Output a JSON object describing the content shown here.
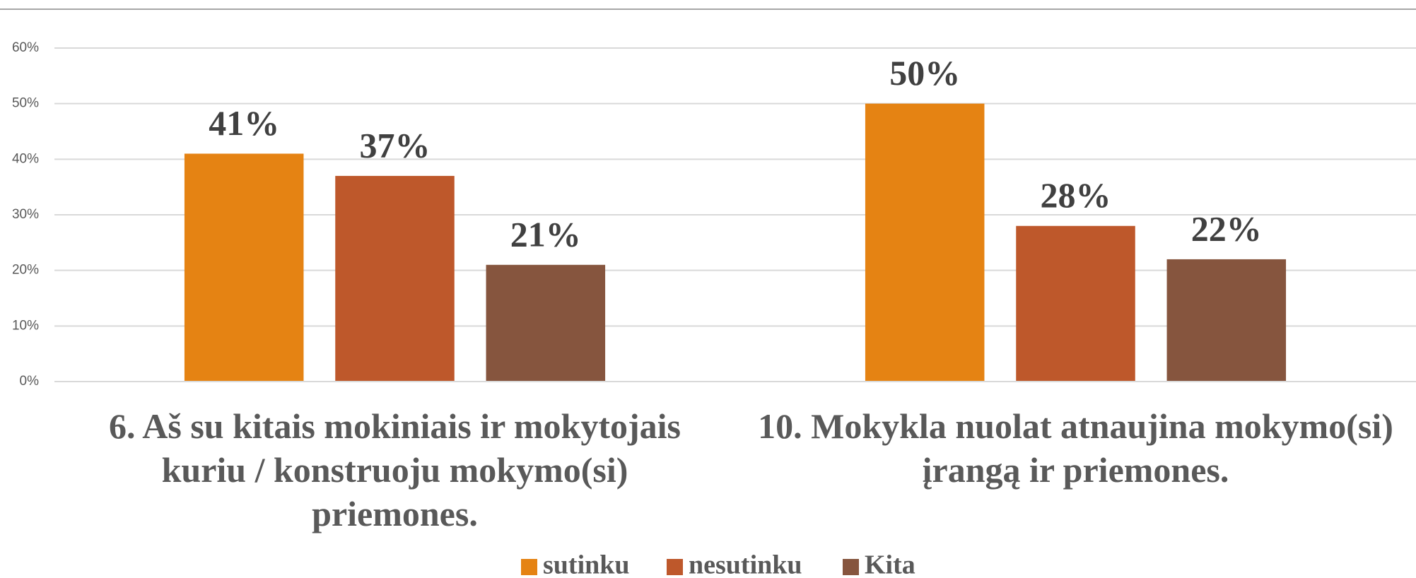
{
  "chart_data": {
    "type": "bar",
    "categories": [
      "6. Aš su kitais mokiniais ir mokytojais kuriu / konstruoju mokymo(si) priemones.",
      "10. Mokykla nuolat atnaujina mokymo(si) įrangą ir priemones."
    ],
    "series": [
      {
        "name": "sutinku",
        "color": "#e58313",
        "values": [
          41,
          50
        ],
        "value_labels": [
          "41%",
          "50%"
        ]
      },
      {
        "name": "nesutinku",
        "color": "#be582b",
        "values": [
          37,
          28
        ],
        "value_labels": [
          "37%",
          "28%"
        ]
      },
      {
        "name": "Kita",
        "color": "#86553e",
        "values": [
          21,
          22
        ],
        "value_labels": [
          "21%",
          "22%"
        ]
      }
    ],
    "ylim": [
      0,
      60
    ],
    "yticks": [
      {
        "value": 0,
        "label": "0%"
      },
      {
        "value": 10,
        "label": "10%"
      },
      {
        "value": 20,
        "label": "20%"
      },
      {
        "value": 30,
        "label": "30%"
      },
      {
        "value": 40,
        "label": "40%"
      },
      {
        "value": 50,
        "label": "50%"
      },
      {
        "value": 60,
        "label": "60%"
      }
    ],
    "grid": true,
    "legend": "bottom"
  }
}
